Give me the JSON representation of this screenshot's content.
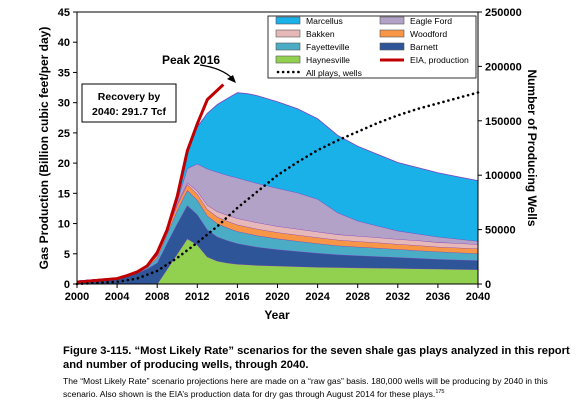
{
  "chart_data": {
    "type": "area",
    "ylabel": "Gas Production (Billion cubic feet/per day)",
    "xlabel": "Year",
    "y2label": "Number of Producing Wells",
    "xlim": [
      2000,
      2040
    ],
    "ylim": [
      0,
      45
    ],
    "y2lim": [
      0,
      250000
    ],
    "xticks": [
      "2000",
      "2004",
      "2008",
      "2012",
      "2016",
      "2020",
      "2024",
      "2028",
      "2032",
      "2036",
      "2040"
    ],
    "yticks": [
      "0",
      "5",
      "10",
      "15",
      "20",
      "25",
      "30",
      "35",
      "40",
      "45"
    ],
    "y2ticks": [
      "0",
      "50000",
      "100000",
      "150000",
      "200000",
      "250000"
    ],
    "x": [
      2000,
      2004,
      2006,
      2007,
      2008,
      2009,
      2010,
      2011,
      2012,
      2013,
      2014,
      2015,
      2016,
      2017,
      2018,
      2020,
      2022,
      2024,
      2026,
      2028,
      2030,
      2032,
      2034,
      2036,
      2038,
      2040
    ],
    "stack_order_bottom_to_top": [
      "Haynesville",
      "Barnett",
      "Fayetteville",
      "Woodford",
      "Bakken",
      "Eagle Ford",
      "Marcellus"
    ],
    "series": [
      {
        "name": "Haynesville",
        "color": "#92d050",
        "values": [
          0,
          0,
          0,
          0,
          0,
          2.5,
          5,
          7.5,
          6.5,
          4.5,
          3.8,
          3.5,
          3.3,
          3.2,
          3.1,
          3.0,
          2.9,
          2.8,
          2.75,
          2.7,
          2.65,
          2.6,
          2.55,
          2.5,
          2.45,
          2.4
        ]
      },
      {
        "name": "Barnett",
        "color": "#2e5597",
        "values": [
          0.5,
          1.0,
          1.8,
          2.5,
          3.5,
          4.3,
          5.0,
          5.5,
          5.0,
          4.5,
          4.0,
          3.7,
          3.4,
          3.2,
          3.0,
          2.7,
          2.5,
          2.3,
          2.1,
          2.0,
          1.9,
          1.8,
          1.7,
          1.6,
          1.55,
          1.5
        ]
      },
      {
        "name": "Fayetteville",
        "color": "#4bacc6",
        "values": [
          0,
          0,
          0.1,
          0.3,
          0.8,
          1.5,
          2.2,
          2.5,
          2.4,
          2.3,
          2.2,
          2.1,
          2.0,
          1.95,
          1.9,
          1.8,
          1.7,
          1.6,
          1.5,
          1.45,
          1.4,
          1.35,
          1.3,
          1.25,
          1.2,
          1.15
        ]
      },
      {
        "name": "Woodford",
        "color": "#f79646",
        "values": [
          0,
          0,
          0.1,
          0.2,
          0.4,
          0.7,
          0.9,
          1.0,
          1.0,
          1.05,
          1.1,
          1.1,
          1.1,
          1.1,
          1.1,
          1.05,
          1.0,
          1.0,
          0.95,
          0.9,
          0.9,
          0.85,
          0.85,
          0.8,
          0.8,
          0.8
        ]
      },
      {
        "name": "Bakken",
        "color": "#e6b9b8",
        "values": [
          0,
          0,
          0,
          0,
          0.05,
          0.1,
          0.2,
          0.3,
          0.5,
          0.7,
          0.9,
          1.0,
          1.05,
          1.05,
          1.05,
          1.0,
          1.0,
          0.95,
          0.9,
          0.9,
          0.85,
          0.8,
          0.8,
          0.75,
          0.75,
          0.7
        ]
      },
      {
        "name": "Eagle Ford",
        "color": "#b3a2c7",
        "values": [
          0,
          0,
          0,
          0,
          0,
          0,
          0.4,
          2.3,
          4.5,
          6.0,
          6.5,
          6.6,
          6.7,
          6.6,
          6.5,
          6.3,
          6.0,
          5.4,
          3.6,
          2.5,
          1.9,
          1.4,
          1.1,
          0.9,
          0.7,
          0.55
        ]
      },
      {
        "name": "Marcellus",
        "color": "#1ab0e8",
        "values": [
          0,
          0,
          0,
          0,
          0,
          0,
          0.5,
          3.4,
          6.1,
          9.2,
          11.2,
          12.7,
          14.1,
          14.4,
          14.5,
          14.3,
          13.9,
          13.3,
          12.8,
          12.35,
          11.85,
          11.3,
          10.95,
          10.6,
          10.3,
          10.0
        ]
      }
    ],
    "eia_production": {
      "name": "EIA, production",
      "color": "#c00000",
      "x": [
        2000,
        2002,
        2004,
        2005,
        2006,
        2007,
        2008,
        2009,
        2010,
        2011,
        2012,
        2013,
        2014.6
      ],
      "y": [
        0.3,
        0.6,
        0.9,
        1.4,
        2.0,
        3.0,
        5.2,
        9.0,
        14.5,
        22.0,
        26.5,
        30.5,
        33.0
      ]
    },
    "all_plays_wells": {
      "name": "All plays, wells",
      "axis": "right",
      "x": [
        2000,
        2004,
        2006,
        2008,
        2010,
        2012,
        2014,
        2016,
        2018,
        2020,
        2022,
        2024,
        2026,
        2028,
        2030,
        2032,
        2034,
        2036,
        2038,
        2040
      ],
      "y": [
        0,
        2000,
        5000,
        12000,
        24000,
        38000,
        53000,
        70000,
        85000,
        100000,
        112000,
        123000,
        132000,
        140000,
        148000,
        155000,
        161000,
        166000,
        171000,
        176000
      ]
    },
    "annotations": {
      "peak_label": "Peak 2016",
      "recovery_line1": "Recovery by",
      "recovery_line2": "2040: 291.7 Tcf"
    },
    "legend_placement": "top-right"
  },
  "caption": {
    "title": "Figure 3-115. “Most Likely Rate” scenarios for the seven shale gas plays analyzed in this report and number of producing wells, through 2040.",
    "body": "The “Most Likely Rate” scenario projections here are made on a “raw gas” basis. 180,000 wells will be producing by 2040 in this scenario. Also shown is the EIA’s production data for dry gas through August 2014 for these plays.",
    "footnote": "175"
  }
}
